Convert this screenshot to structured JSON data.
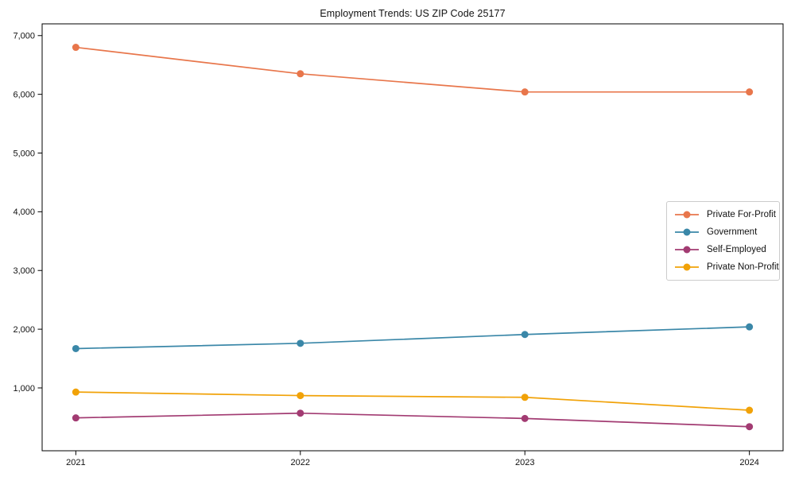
{
  "chart_data": {
    "type": "line",
    "title": "Employment Trends: US ZIP Code 25177",
    "x": [
      2021,
      2022,
      2023,
      2024
    ],
    "x_tick_labels": [
      "2021",
      "2022",
      "2023",
      "2024"
    ],
    "series": [
      {
        "name": "Private For-Profit",
        "color": "#E8764B",
        "values": [
          6800,
          6350,
          6040,
          6040
        ]
      },
      {
        "name": "Government",
        "color": "#3A87A8",
        "values": [
          1670,
          1760,
          1910,
          2040
        ]
      },
      {
        "name": "Self-Employed",
        "color": "#A23B72",
        "values": [
          490,
          570,
          480,
          340
        ]
      },
      {
        "name": "Private Non-Profit",
        "color": "#F1A208",
        "values": [
          930,
          870,
          840,
          620
        ]
      }
    ],
    "yticks": [
      1000,
      2000,
      3000,
      4000,
      5000,
      6000,
      7000
    ],
    "ytick_labels": [
      "1,000",
      "2,000",
      "3,000",
      "4,000",
      "5,000",
      "6,000",
      "7,000"
    ],
    "ylim": [
      -70,
      7200
    ],
    "xlim": [
      2020.85,
      2024.15
    ],
    "grid": false,
    "legend_position": "center-right",
    "marker": "circle",
    "axis_color": "#000000",
    "background_color": "#ffffff"
  }
}
